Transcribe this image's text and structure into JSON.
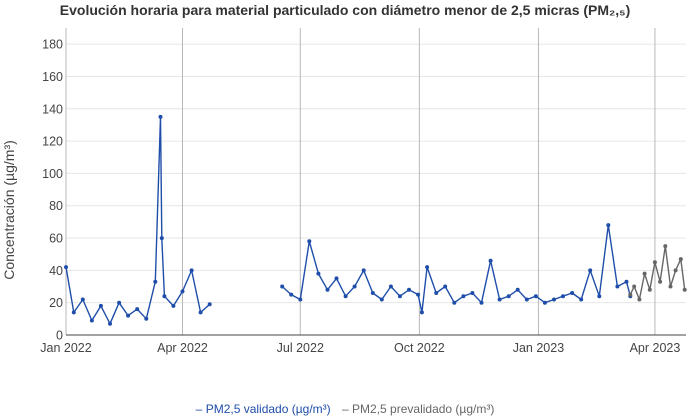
{
  "title": "Evolución horaria para material particulado con diámetro menor de 2,5 micras (PM₂,₅)",
  "chart_data": {
    "type": "line",
    "title": "Evolución horaria para material particulado con diámetro menor de 2,5 micras (PM₂,₅)",
    "xlabel": "",
    "ylabel": "Concentración (µg/m³)",
    "ylim": [
      0,
      190
    ],
    "xlim": [
      "2022-01-01",
      "2023-04-25"
    ],
    "y_ticks": [
      0,
      20,
      40,
      60,
      80,
      100,
      120,
      140,
      160,
      180
    ],
    "x_ticks": [
      {
        "date": "2022-01-01",
        "label": "Jan 2022"
      },
      {
        "date": "2022-04-01",
        "label": "Apr 2022"
      },
      {
        "date": "2022-07-01",
        "label": "Jul 2022"
      },
      {
        "date": "2022-10-01",
        "label": "Oct 2022"
      },
      {
        "date": "2023-01-01",
        "label": "Jan 2023"
      },
      {
        "date": "2023-04-01",
        "label": "Apr 2023"
      }
    ],
    "grid": true,
    "legend_position": "bottom",
    "series": [
      {
        "name": "PM2,5 validado (µg/m³)",
        "color": "#1f4eaa",
        "segments": [
          {
            "x": [
              "2022-01-01",
              "2022-01-07",
              "2022-01-14",
              "2022-01-21",
              "2022-01-28",
              "2022-02-04",
              "2022-02-11",
              "2022-02-18",
              "2022-02-25",
              "2022-03-04",
              "2022-03-11",
              "2022-03-15",
              "2022-03-16",
              "2022-03-18",
              "2022-03-25",
              "2022-04-01",
              "2022-04-08",
              "2022-04-15",
              "2022-04-22"
            ],
            "y": [
              42,
              14,
              22,
              9,
              18,
              7,
              20,
              12,
              16,
              10,
              33,
              135,
              60,
              24,
              18,
              27,
              40,
              14,
              19
            ]
          },
          {
            "x": [
              "2022-06-17",
              "2022-06-24",
              "2022-07-01",
              "2022-07-08",
              "2022-07-15",
              "2022-07-22",
              "2022-07-29",
              "2022-08-05",
              "2022-08-12",
              "2022-08-19",
              "2022-08-26",
              "2022-09-02",
              "2022-09-09",
              "2022-09-16",
              "2022-09-23",
              "2022-09-30",
              "2022-10-03",
              "2022-10-07",
              "2022-10-14",
              "2022-10-21",
              "2022-10-28",
              "2022-11-04",
              "2022-11-11",
              "2022-11-18",
              "2022-11-25",
              "2022-12-02",
              "2022-12-09",
              "2022-12-16",
              "2022-12-23",
              "2022-12-30",
              "2023-01-06",
              "2023-01-13",
              "2023-01-20",
              "2023-01-27",
              "2023-02-03",
              "2023-02-10",
              "2023-02-17",
              "2023-02-24",
              "2023-03-03",
              "2023-03-10",
              "2023-03-13"
            ],
            "y": [
              30,
              25,
              22,
              58,
              38,
              28,
              35,
              24,
              30,
              40,
              26,
              22,
              30,
              24,
              28,
              25,
              14,
              42,
              26,
              30,
              20,
              24,
              26,
              20,
              46,
              22,
              24,
              28,
              22,
              24,
              20,
              22,
              24,
              26,
              22,
              40,
              24,
              68,
              30,
              33,
              24
            ]
          }
        ]
      },
      {
        "name": "PM2,5 prevalidado (µg/m³)",
        "color": "#666666",
        "segments": [
          {
            "x": [
              "2023-03-13",
              "2023-03-16",
              "2023-03-20",
              "2023-03-24",
              "2023-03-28",
              "2023-04-01",
              "2023-04-05",
              "2023-04-09",
              "2023-04-13",
              "2023-04-17",
              "2023-04-21",
              "2023-04-24"
            ],
            "y": [
              25,
              30,
              22,
              38,
              28,
              45,
              33,
              55,
              30,
              40,
              47,
              28
            ]
          }
        ]
      }
    ]
  }
}
